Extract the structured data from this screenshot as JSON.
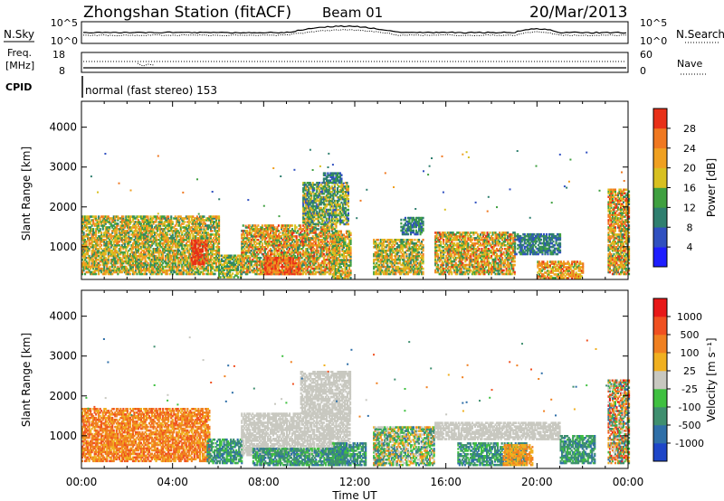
{
  "header": {
    "station": "Zhongshan Station (fitACF)",
    "beam": "Beam 01",
    "date": "20/Mar/2013"
  },
  "labels": {
    "nsky": "N.Sky",
    "nsearch": "N.Search",
    "freq_line1": "Freq.",
    "freq_line2": "[MHz]",
    "nave": "Nave",
    "cpid": "CPID",
    "mode": "normal (fast stereo) 153"
  },
  "noise_axis": {
    "left_ticks": [
      "10^5",
      "10^0"
    ],
    "right_ticks": [
      "10^5",
      "10^0"
    ]
  },
  "freq_axis": {
    "left_ticks": [
      "18",
      "8"
    ],
    "right_ticks": [
      "60",
      "0"
    ]
  },
  "chart_data": [
    {
      "type": "heatmap",
      "name": "power-panel",
      "ylabel": "Slant Range [km]",
      "xlabel": "",
      "x_ticks": [
        "00:00",
        "04:00",
        "08:00",
        "12:00",
        "16:00",
        "20:00",
        "00:00"
      ],
      "y_ticks": [
        1000,
        2000,
        3000,
        4000
      ],
      "ylim": [
        180,
        4650
      ],
      "xlim_hours": [
        0,
        24
      ],
      "colorbar": {
        "label": "Power [dB]",
        "ticks": [
          "4",
          "8",
          "12",
          "16",
          "20",
          "24",
          "28"
        ],
        "colors": [
          "#1e1eff",
          "#3050c0",
          "#2f7f6f",
          "#3fa040",
          "#d8c020",
          "#f0a020",
          "#f07820",
          "#e83018"
        ]
      },
      "regions": [
        {
          "t": [
            0.0,
            6.0
          ],
          "r": [
            300,
            1750
          ],
          "lvl": [
            2,
            6
          ]
        },
        {
          "t": [
            4.8,
            5.5
          ],
          "r": [
            550,
            1150
          ],
          "lvl": [
            6,
            8
          ]
        },
        {
          "t": [
            6.0,
            7.0
          ],
          "r": [
            220,
            800
          ],
          "lvl": [
            2,
            5
          ]
        },
        {
          "t": [
            7.0,
            11.2
          ],
          "r": [
            300,
            1550
          ],
          "lvl": [
            2,
            7
          ]
        },
        {
          "t": [
            8.0,
            9.6
          ],
          "r": [
            300,
            750
          ],
          "lvl": [
            5,
            8
          ]
        },
        {
          "t": [
            9.7,
            11.7
          ],
          "r": [
            1550,
            2600
          ],
          "lvl": [
            1,
            5
          ]
        },
        {
          "t": [
            10.6,
            11.4
          ],
          "r": [
            2600,
            2850
          ],
          "lvl": [
            1,
            3
          ]
        },
        {
          "t": [
            11.0,
            11.8
          ],
          "r": [
            200,
            1400
          ],
          "lvl": [
            2,
            6
          ]
        },
        {
          "t": [
            12.8,
            15.0
          ],
          "r": [
            300,
            1200
          ],
          "lvl": [
            2,
            6
          ]
        },
        {
          "t": [
            14.0,
            15.0
          ],
          "r": [
            1300,
            1750
          ],
          "lvl": [
            1,
            3
          ]
        },
        {
          "t": [
            15.5,
            19.0
          ],
          "r": [
            300,
            1350
          ],
          "lvl": [
            2,
            7
          ]
        },
        {
          "t": [
            19.0,
            21.0
          ],
          "r": [
            800,
            1300
          ],
          "lvl": [
            1,
            3
          ]
        },
        {
          "t": [
            20.0,
            22.0
          ],
          "r": [
            200,
            650
          ],
          "lvl": [
            3,
            7
          ]
        },
        {
          "t": [
            23.1,
            24.0
          ],
          "r": [
            300,
            2450
          ],
          "lvl": [
            2,
            7
          ]
        }
      ]
    },
    {
      "type": "heatmap",
      "name": "velocity-panel",
      "ylabel": "Slant Range [km]",
      "xlabel": "Time UT",
      "x_ticks": [
        "00:00",
        "04:00",
        "08:00",
        "12:00",
        "16:00",
        "20:00",
        "00:00"
      ],
      "y_ticks": [
        1000,
        2000,
        3000,
        4000
      ],
      "ylim": [
        180,
        4650
      ],
      "xlim_hours": [
        0,
        24
      ],
      "colorbar": {
        "label": "Velocity [m s^-1]",
        "ticks": [
          "1000",
          "500",
          "100",
          "25",
          "-25",
          "-100",
          "-500",
          "-1000"
        ],
        "colors": [
          "#1e46c8",
          "#2f6fa8",
          "#3f8f6f",
          "#3fc040",
          "#c8c8c0",
          "#f0b020",
          "#f08020",
          "#f05020",
          "#e81818"
        ]
      },
      "regions": [
        {
          "t": [
            0.0,
            5.6
          ],
          "r": [
            350,
            1700
          ],
          "lvl": [
            5,
            7
          ]
        },
        {
          "t": [
            5.5,
            7.0
          ],
          "r": [
            300,
            900
          ],
          "lvl": [
            1,
            3
          ]
        },
        {
          "t": [
            7.0,
            11.8
          ],
          "r": [
            500,
            1550
          ],
          "lvl": [
            4,
            4
          ]
        },
        {
          "t": [
            7.5,
            11.5
          ],
          "r": [
            250,
            700
          ],
          "lvl": [
            1,
            3
          ]
        },
        {
          "t": [
            9.6,
            11.8
          ],
          "r": [
            1550,
            2600
          ],
          "lvl": [
            4,
            4
          ]
        },
        {
          "t": [
            11.0,
            12.5
          ],
          "r": [
            250,
            800
          ],
          "lvl": [
            1,
            3
          ]
        },
        {
          "t": [
            12.8,
            15.5
          ],
          "r": [
            250,
            1200
          ],
          "lvl": [
            1,
            6
          ]
        },
        {
          "t": [
            15.5,
            21.0
          ],
          "r": [
            900,
            1350
          ],
          "lvl": [
            4,
            4
          ]
        },
        {
          "t": [
            16.5,
            19.5
          ],
          "r": [
            250,
            800
          ],
          "lvl": [
            1,
            3
          ]
        },
        {
          "t": [
            18.5,
            19.8
          ],
          "r": [
            250,
            750
          ],
          "lvl": [
            5,
            6
          ]
        },
        {
          "t": [
            21.0,
            22.5
          ],
          "r": [
            300,
            1000
          ],
          "lvl": [
            1,
            3
          ]
        },
        {
          "t": [
            23.1,
            24.0
          ],
          "r": [
            300,
            2400
          ],
          "lvl": [
            1,
            8
          ]
        }
      ]
    }
  ]
}
